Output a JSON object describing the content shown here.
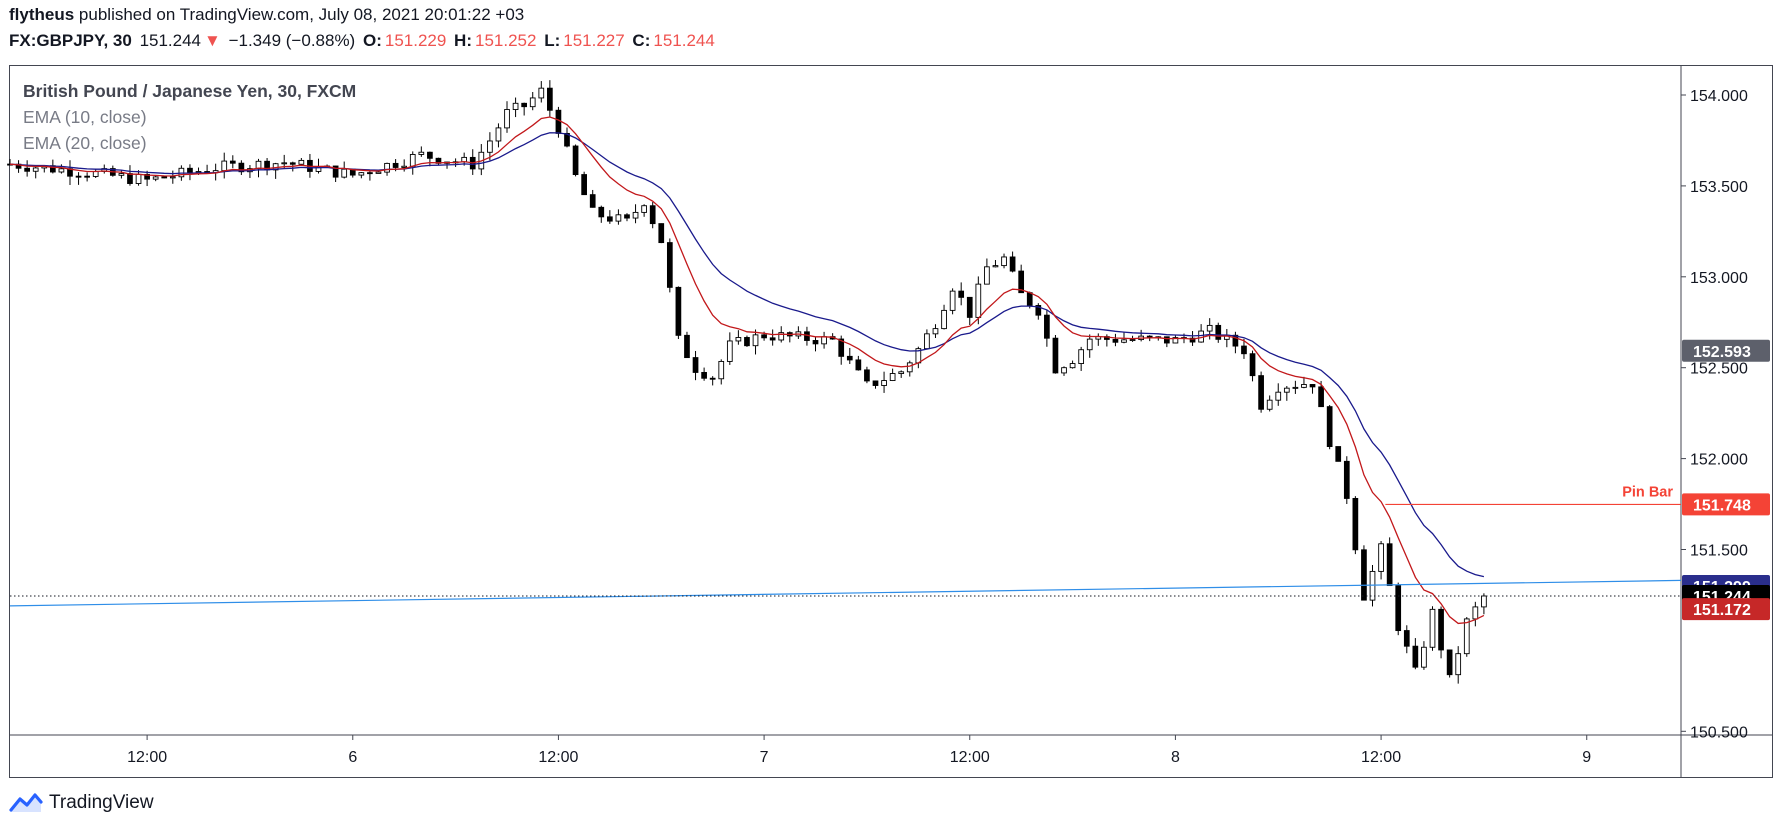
{
  "header": {
    "author": "flytheus",
    "published_text": "published on TradingView.com, July 08, 2021 20:01:22 +03",
    "symbol": "FX:GBPJPY, 30",
    "last": "151.244",
    "change_arrow": "▼",
    "change": "−1.349 (−0.88%)",
    "o_label": "O:",
    "o_value": "151.229",
    "h_label": "H:",
    "h_value": "151.252",
    "l_label": "L:",
    "l_value": "151.227",
    "c_label": "C:",
    "c_value": "151.244"
  },
  "legend": {
    "title": "British Pound / Japanese Yen, 30, FXCM",
    "ema10": "EMA (10, close)",
    "ema20": "EMA (20, close)"
  },
  "footer": {
    "brand": "TradingView"
  },
  "colors": {
    "up_body": "#ffffff",
    "down_body": "#000000",
    "wick": "#000000",
    "ema10": "#c2181b",
    "ema20": "#1a1a8c",
    "trendline": "#2f8ee8",
    "pin_bar": "#f44336",
    "label_black": "#000000",
    "label_red": "#c62828",
    "label_navy": "#2a2e8c",
    "label_gray": "#5d606b"
  },
  "chart_data": {
    "type": "candlestick",
    "timeframe": "30",
    "ylim": [
      150.45,
      154.12
    ],
    "y_ticks": [
      "154.000",
      "153.500",
      "153.000",
      "152.500",
      "152.000",
      "151.500",
      "150.500"
    ],
    "x_ticks": [
      "12:00",
      "6",
      "12:00",
      "7",
      "12:00",
      "8",
      "12:00",
      "9"
    ],
    "x_tick_times": [
      "2021-07-05 12:00",
      "2021-07-06 00:00",
      "2021-07-06 12:00",
      "2021-07-07 00:00",
      "2021-07-07 12:00",
      "2021-07-08 00:00",
      "2021-07-08 12:00",
      "2021-07-09 00:00"
    ],
    "x_start": "2021-07-05 04:00",
    "x_end": "2021-07-09 05:30",
    "close_path": [
      [
        "2021-07-05 04:00",
        153.62
      ],
      [
        "2021-07-05 08:00",
        153.58
      ],
      [
        "2021-07-05 12:00",
        153.53
      ],
      [
        "2021-07-05 16:00",
        153.6
      ],
      [
        "2021-07-05 20:00",
        153.63
      ],
      [
        "2021-07-06 00:00",
        153.56
      ],
      [
        "2021-07-06 04:00",
        153.67
      ],
      [
        "2021-07-06 07:00",
        153.62
      ],
      [
        "2021-07-06 08:00",
        153.75
      ],
      [
        "2021-07-06 09:00",
        153.9
      ],
      [
        "2021-07-06 10:00",
        153.94
      ],
      [
        "2021-07-06 11:00",
        154.02
      ],
      [
        "2021-07-06 12:00",
        153.82
      ],
      [
        "2021-07-06 13:00",
        153.55
      ],
      [
        "2021-07-06 14:00",
        153.35
      ],
      [
        "2021-07-06 16:00",
        153.3
      ],
      [
        "2021-07-06 17:00",
        153.42
      ],
      [
        "2021-07-06 18:00",
        153.2
      ],
      [
        "2021-07-06 19:00",
        152.65
      ],
      [
        "2021-07-06 20:00",
        152.5
      ],
      [
        "2021-07-06 21:00",
        152.45
      ],
      [
        "2021-07-06 22:00",
        152.62
      ],
      [
        "2021-07-07 00:00",
        152.68
      ],
      [
        "2021-07-07 04:00",
        152.65
      ],
      [
        "2021-07-07 06:00",
        152.4
      ],
      [
        "2021-07-07 08:00",
        152.48
      ],
      [
        "2021-07-07 09:00",
        152.6
      ],
      [
        "2021-07-07 10:00",
        152.75
      ],
      [
        "2021-07-07 11:00",
        152.95
      ],
      [
        "2021-07-07 12:00",
        152.8
      ],
      [
        "2021-07-07 13:00",
        153.05
      ],
      [
        "2021-07-07 14:00",
        153.1
      ],
      [
        "2021-07-07 15:00",
        152.9
      ],
      [
        "2021-07-07 16:00",
        152.82
      ],
      [
        "2021-07-07 17:00",
        152.5
      ],
      [
        "2021-07-07 18:00",
        152.55
      ],
      [
        "2021-07-07 19:00",
        152.66
      ],
      [
        "2021-07-08 00:00",
        152.65
      ],
      [
        "2021-07-08 02:00",
        152.7
      ],
      [
        "2021-07-08 04:00",
        152.6
      ],
      [
        "2021-07-08 05:00",
        152.3
      ],
      [
        "2021-07-08 06:00",
        152.4
      ],
      [
        "2021-07-08 08:00",
        152.42
      ],
      [
        "2021-07-08 09:00",
        152.1
      ],
      [
        "2021-07-08 10:00",
        151.8
      ],
      [
        "2021-07-08 11:00",
        151.25
      ],
      [
        "2021-07-08 12:00",
        151.5
      ],
      [
        "2021-07-08 13:00",
        151.08
      ],
      [
        "2021-07-08 14:00",
        150.82
      ],
      [
        "2021-07-08 15:00",
        151.15
      ],
      [
        "2021-07-08 16:00",
        150.78
      ],
      [
        "2021-07-08 17:00",
        151.1
      ],
      [
        "2021-07-08 18:00",
        151.24
      ]
    ],
    "series": [
      {
        "name": "EMA (10, close)",
        "last": 151.172
      },
      {
        "name": "EMA (20, close)",
        "last": 151.299
      }
    ],
    "price_labels": [
      {
        "value": "152.593"
      },
      {
        "value": "151.748"
      },
      {
        "value": "151.299"
      },
      {
        "value": "151.244"
      },
      {
        "value": "151.172"
      }
    ],
    "annotations": [
      {
        "text": "Pin Bar",
        "value": 151.748,
        "from": "2021-07-08 12:15",
        "to": "2021-07-09 05:30"
      }
    ],
    "trendline": {
      "from": [
        "2021-07-05 04:00",
        151.19
      ],
      "to": [
        "2021-07-09 05:30",
        151.33
      ]
    },
    "current_price": 151.244
  }
}
